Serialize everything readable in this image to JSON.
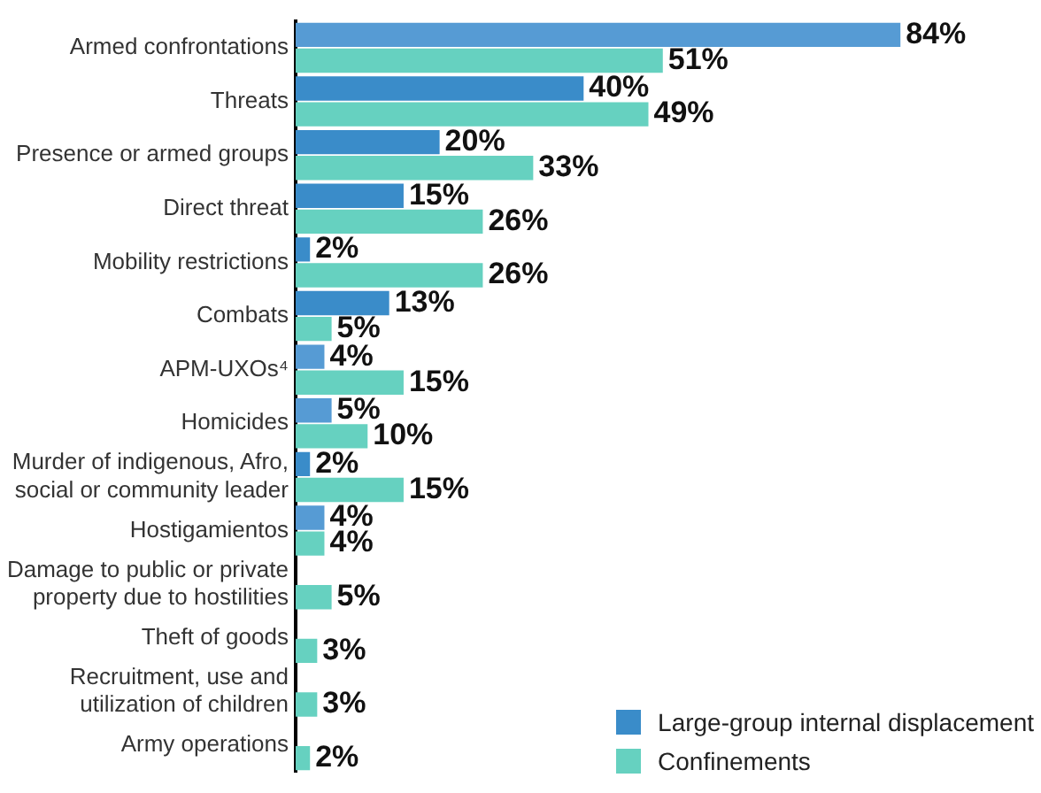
{
  "chart_data": {
    "type": "bar",
    "orientation": "horizontal",
    "categories": [
      "Armed confrontations",
      "Threats",
      "Presence or armed groups",
      "Direct threat",
      "Mobility restrictions",
      "Combats",
      "APM-UXOs⁴",
      "Homicides",
      "Murder of indigenous, Afro,\nsocial or community leader",
      "Hostigamientos",
      "Damage to public or private\nproperty due to hostilities",
      "Theft of goods",
      "Recruitment, use and\nutilization of children",
      "Army operations"
    ],
    "series": [
      {
        "name": "Large-group internal displacement",
        "color": "#3a8cc9",
        "colors": [
          "#569bd4",
          "#3a8cc9",
          "#3a8cc9",
          "#3a8cc9",
          "#3a8cc9",
          "#3a8cc9",
          "#569bd4",
          "#569bd4",
          "#3a8cc9",
          "#569bd4",
          null,
          null,
          null,
          null
        ],
        "values": [
          84,
          40,
          20,
          15,
          2,
          13,
          4,
          5,
          2,
          4,
          null,
          null,
          null,
          null
        ],
        "value_labels": [
          "84%",
          "40%",
          "20%",
          "15%",
          "2%",
          "13%",
          "4%",
          "5%",
          "2%",
          "4%",
          null,
          null,
          null,
          null
        ]
      },
      {
        "name": "Confinements",
        "color": "#66d1c0",
        "values": [
          51,
          49,
          33,
          26,
          26,
          5,
          15,
          10,
          15,
          4,
          5,
          3,
          3,
          2
        ],
        "value_labels": [
          "51%",
          "49%",
          "33%",
          "26%",
          "26%",
          "5%",
          "15%",
          "10%",
          "15%",
          "4%",
          "5%",
          "3%",
          "3%",
          "2%"
        ]
      }
    ],
    "legend": "bottom right",
    "tick_labels": "y"
  }
}
